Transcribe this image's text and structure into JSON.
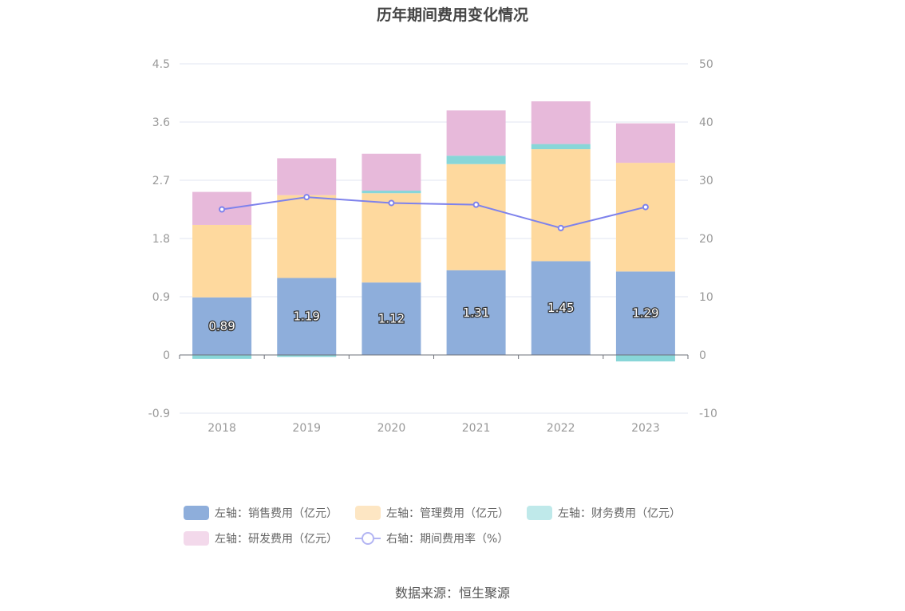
{
  "title": "历年期间费用变化情况",
  "source": "数据来源：恒生聚源",
  "chart_data": {
    "type": "bar",
    "stacked": true,
    "categories": [
      "2018",
      "2019",
      "2020",
      "2021",
      "2022",
      "2023"
    ],
    "left_axis": {
      "ticks": [
        "4.5",
        "3.6",
        "2.7",
        "1.8",
        "0.9",
        "0",
        "-0.9"
      ],
      "range": [
        -0.9,
        4.5
      ]
    },
    "right_axis": {
      "ticks": [
        "50",
        "40",
        "30",
        "20",
        "10",
        "0",
        "-10"
      ],
      "range": [
        -10,
        50
      ]
    },
    "series": [
      {
        "name": "左轴：销售费用（亿元）",
        "axis": "left",
        "type": "bar",
        "color": "#8eaedb",
        "values": [
          0.89,
          1.19,
          1.12,
          1.31,
          1.45,
          1.29
        ],
        "labels": [
          "0.89",
          "1.19",
          "1.12",
          "1.31",
          "1.45",
          "1.29"
        ]
      },
      {
        "name": "左轴：管理费用（亿元）",
        "axis": "left",
        "type": "bar",
        "color": "#fed99e",
        "values": [
          1.12,
          1.28,
          1.38,
          1.64,
          1.73,
          1.68
        ]
      },
      {
        "name": "左轴：财务费用（亿元）",
        "axis": "left",
        "type": "bar",
        "color": "#88d6d8",
        "values": [
          -0.06,
          -0.03,
          0.04,
          0.13,
          0.08,
          -0.1
        ]
      },
      {
        "name": "左轴：研发费用（亿元）",
        "axis": "left",
        "type": "bar",
        "color": "#e7b9da",
        "values": [
          0.51,
          0.57,
          0.57,
          0.7,
          0.66,
          0.61
        ]
      },
      {
        "name": "右轴：期间费用率（%）",
        "axis": "right",
        "type": "line",
        "color": "#7e82ec",
        "values": [
          25.0,
          27.1,
          26.1,
          25.8,
          21.8,
          25.4
        ]
      }
    ],
    "legend": [
      {
        "label": "左轴：销售费用（亿元）",
        "color": "#8eaedb",
        "kind": "box"
      },
      {
        "label": "左轴：管理费用（亿元）",
        "color": "#fde6c3",
        "kind": "box"
      },
      {
        "label": "左轴：财务费用（亿元）",
        "color": "#bfe9ea",
        "kind": "box"
      },
      {
        "label": "左轴：研发费用（亿元）",
        "color": "#f3d9eb",
        "kind": "box"
      },
      {
        "label": "右轴：期间费用率（%）",
        "color": "#b3b5f3",
        "kind": "line"
      }
    ],
    "grid": true,
    "legend_position": "bottom"
  }
}
